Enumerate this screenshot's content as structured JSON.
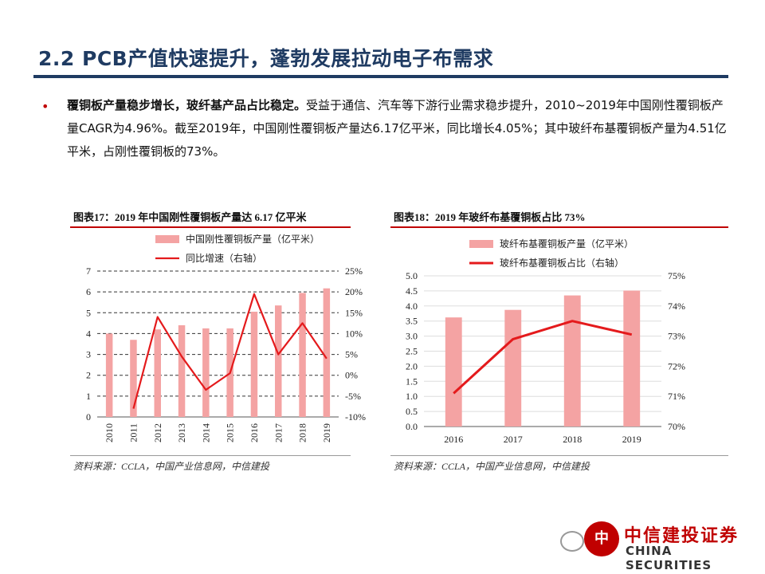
{
  "slide": {
    "title": "2.2 PCB产值快速提升，蓬勃发展拉动电子布需求",
    "bullet": "•",
    "lead": "覆铜板产量稳步增长，玻纤基产品占比稳定。",
    "body": "受益于通信、汽车等下游行业需求稳步提升，2010~2019年中国刚性覆铜板产量CAGR为4.96%。截至2019年，中国刚性覆铜板产量达6.17亿平米，同比增长4.05%；其中玻纤布基覆铜板产量为4.51亿平米，占刚性覆铜板的73%。"
  },
  "colors": {
    "title": "#1f3b62",
    "bar": "#f4a3a3",
    "line": "#e41a1c",
    "accent": "#c00000"
  },
  "chart_data": [
    {
      "type": "bar",
      "title": "图表17：2019 年中国刚性覆铜板产量达 6.17 亿平米",
      "categories": [
        "2010",
        "2011",
        "2012",
        "2013",
        "2014",
        "2015",
        "2016",
        "2017",
        "2018",
        "2019"
      ],
      "series": [
        {
          "name": "中国刚性覆铜板产量（亿平米）",
          "type": "bar",
          "axis": "left",
          "values": [
            4.0,
            3.7,
            4.2,
            4.4,
            4.25,
            4.25,
            5.05,
            5.35,
            5.95,
            6.17
          ]
        },
        {
          "name": "同比增速（右轴）",
          "type": "line",
          "axis": "right",
          "values": [
            null,
            -8,
            14,
            4.5,
            -3.5,
            0.5,
            19.5,
            5,
            12.5,
            4
          ]
        }
      ],
      "ylim": [
        0,
        7
      ],
      "yticks": [
        "0",
        "1",
        "2",
        "3",
        "4",
        "5",
        "6",
        "7"
      ],
      "y2lim": [
        -10,
        25
      ],
      "y2ticks": [
        "-10%",
        "-5%",
        "0%",
        "5%",
        "10%",
        "15%",
        "20%",
        "25%"
      ],
      "grid": true,
      "legend": "top-left",
      "source": "资料来源：CCLA，中国产业信息网，中信建投"
    },
    {
      "type": "bar",
      "title": "图表18：2019 年玻纤布基覆铜板占比 73%",
      "categories": [
        "2016",
        "2017",
        "2018",
        "2019"
      ],
      "series": [
        {
          "name": "玻纤布基覆铜板产量（亿平米）",
          "type": "bar",
          "axis": "left",
          "values": [
            3.62,
            3.87,
            4.35,
            4.51
          ]
        },
        {
          "name": "玻纤布基覆铜板占比（右轴）",
          "type": "line",
          "axis": "right",
          "values": [
            71.1,
            72.9,
            73.5,
            73.05
          ]
        }
      ],
      "ylim": [
        0,
        5
      ],
      "yticks": [
        "0.0",
        "0.5",
        "1.0",
        "1.5",
        "2.0",
        "2.5",
        "3.0",
        "3.5",
        "4.0",
        "4.5",
        "5.0"
      ],
      "y2lim": [
        70,
        75
      ],
      "y2ticks": [
        "70%",
        "71%",
        "72%",
        "73%",
        "74%",
        "75%"
      ],
      "grid": true,
      "legend": "top-left",
      "source": "资料来源：CCLA，中国产业信息网，中信建投"
    }
  ],
  "logo": {
    "seal": "中",
    "name_cn": "中信建投证券",
    "name_en": "CHINA SECURITIES"
  }
}
